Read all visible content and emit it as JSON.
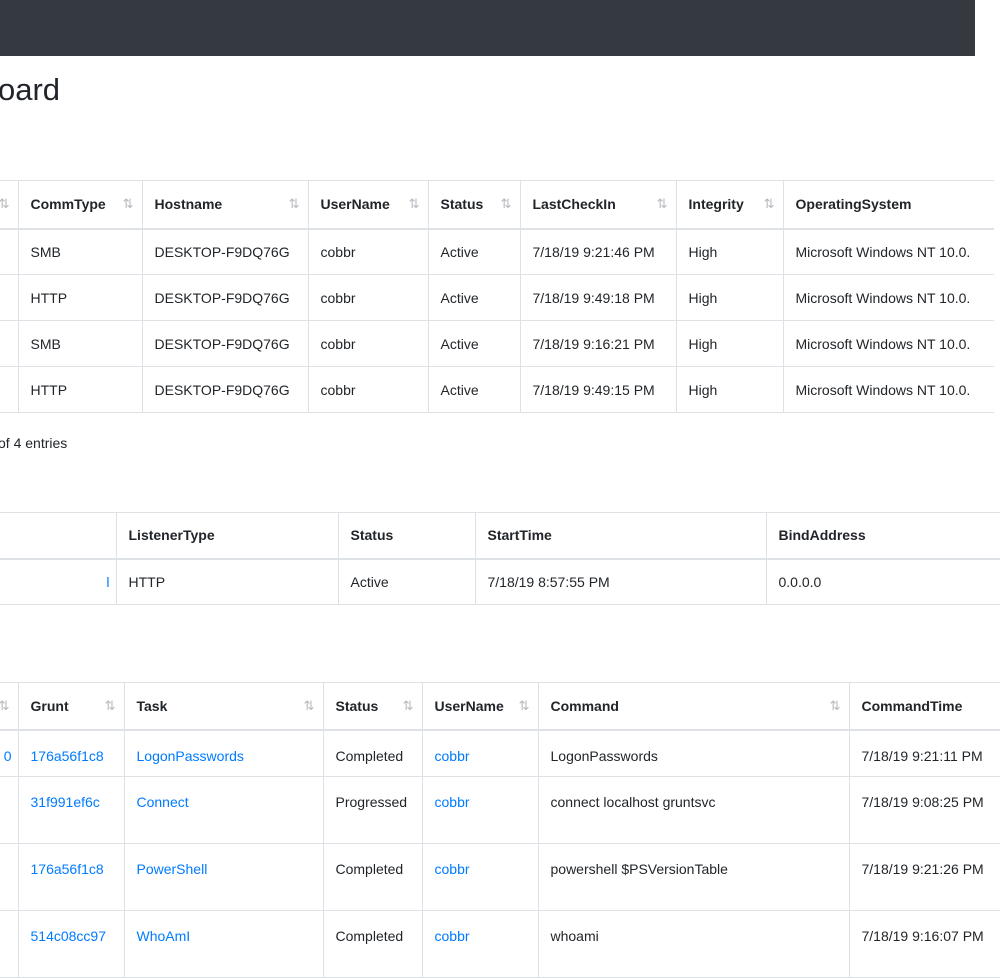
{
  "page_title": "oard",
  "grunts_table": {
    "headers": [
      "CommType",
      "Hostname",
      "UserName",
      "Status",
      "LastCheckIn",
      "Integrity",
      "OperatingSystem"
    ],
    "rows": [
      [
        "SMB",
        "DESKTOP-F9DQ76G",
        "cobbr",
        "Active",
        "7/18/19 9:21:46 PM",
        "High",
        "Microsoft Windows NT 10.0."
      ],
      [
        "HTTP",
        "DESKTOP-F9DQ76G",
        "cobbr",
        "Active",
        "7/18/19 9:49:18 PM",
        "High",
        "Microsoft Windows NT 10.0."
      ],
      [
        "SMB",
        "DESKTOP-F9DQ76G",
        "cobbr",
        "Active",
        "7/18/19 9:16:21 PM",
        "High",
        "Microsoft Windows NT 10.0."
      ],
      [
        "HTTP",
        "DESKTOP-F9DQ76G",
        "cobbr",
        "Active",
        "7/18/19 9:49:15 PM",
        "High",
        "Microsoft Windows NT 10.0."
      ]
    ]
  },
  "entries_text": "of 4 entries",
  "listeners_table": {
    "headers": [
      "ListenerType",
      "Status",
      "StartTime",
      "BindAddress"
    ],
    "rows": [
      [
        "HTTP",
        "Active",
        "7/18/19 8:57:55 PM",
        "0.0.0.0"
      ]
    ]
  },
  "tasks_table": {
    "headers": [
      "Grunt",
      "Task",
      "Status",
      "UserName",
      "Command",
      "CommandTime"
    ],
    "rows": [
      [
        "176a56f1c8",
        "LogonPasswords",
        "Completed",
        "cobbr",
        "LogonPasswords",
        "7/18/19 9:21:11 PM"
      ],
      [
        "31f991ef6c",
        "Connect",
        "Progressed",
        "cobbr",
        "connect localhost gruntsvc",
        "7/18/19 9:08:25 PM"
      ],
      [
        "176a56f1c8",
        "PowerShell",
        "Completed",
        "cobbr",
        "powershell $PSVersionTable",
        "7/18/19 9:21:26 PM"
      ],
      [
        "514c08cc97",
        "WhoAmI",
        "Completed",
        "cobbr",
        "whoami",
        "7/18/19 9:16:07 PM"
      ]
    ]
  },
  "sort_glyph": "⇅",
  "colors": {
    "topbar": "#343a40",
    "link": "#007bff",
    "border": "#dee2e6"
  }
}
